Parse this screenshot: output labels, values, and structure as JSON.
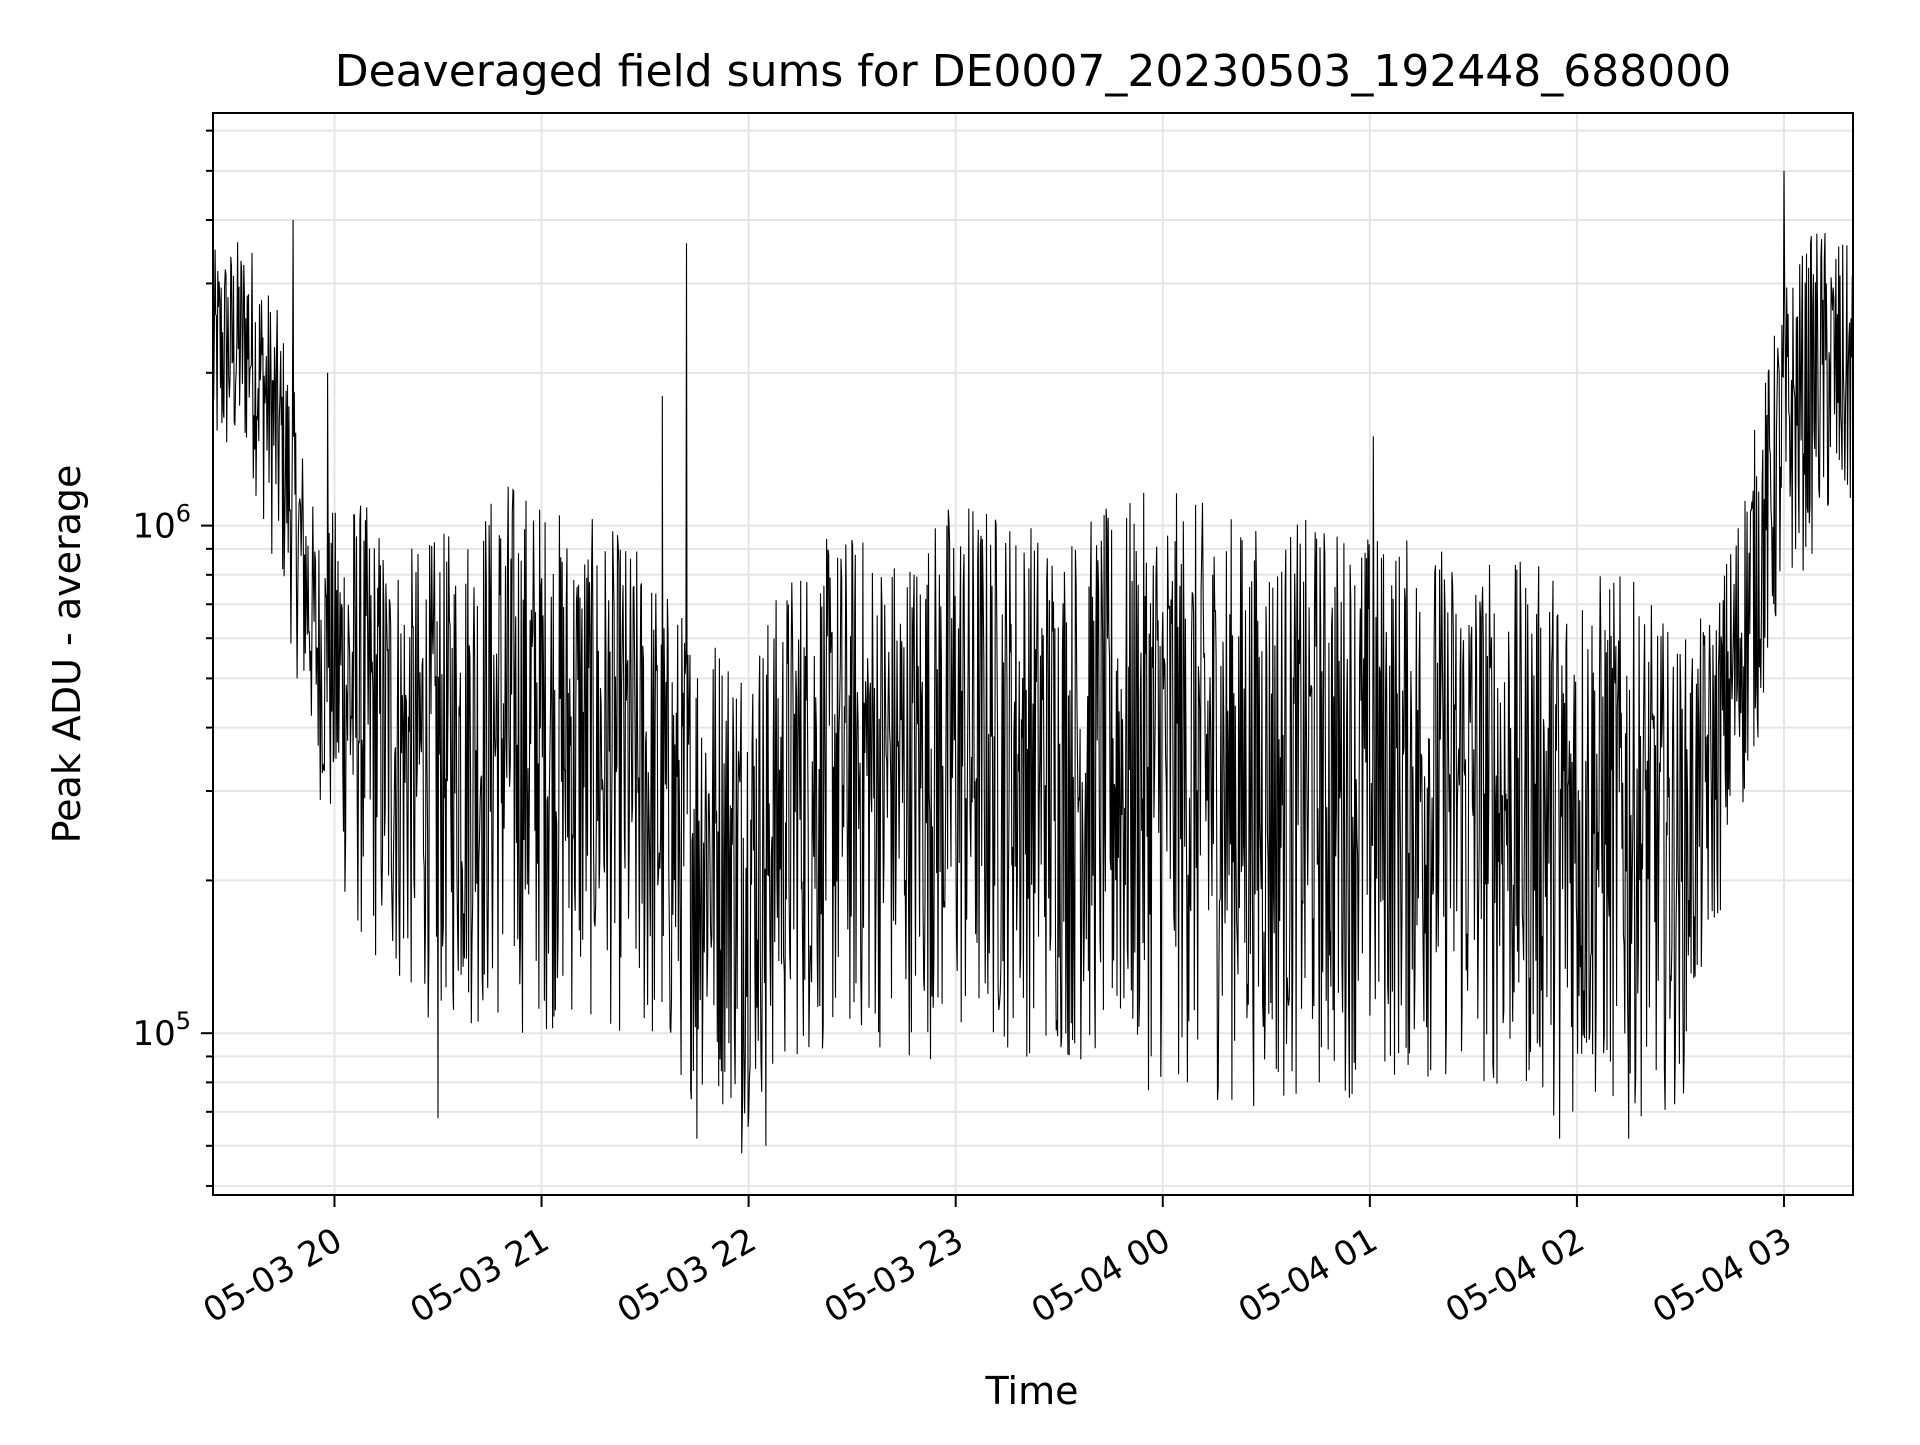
{
  "chart_data": {
    "type": "line",
    "title": "Deaveraged field sums for DE0007_20230503_192448_688000",
    "xlabel": "Time",
    "ylabel": "Peak ADU - average",
    "x_ticks": [
      "05-03 20",
      "05-03 21",
      "05-03 22",
      "05-03 23",
      "05-04 00",
      "05-04 01",
      "05-04 02",
      "05-04 03"
    ],
    "x_range": [
      "05-03 19:24:48",
      "05-04 03:20:00"
    ],
    "y_scale": "log",
    "ylim": [
      48000,
      6500000
    ],
    "y_ticks": [
      {
        "value": 100000,
        "base": "10",
        "exp": "5"
      },
      {
        "value": 1000000,
        "base": "10",
        "exp": "6"
      }
    ],
    "grid": true,
    "line_color": "#000000",
    "grid_color": "#e5e5e5",
    "series": [
      {
        "name": "",
        "x": [
          "05-03 19:25",
          "05-03 19:35",
          "05-03 19:45",
          "05-03 19:55",
          "05-03 20:05",
          "05-03 20:20",
          "05-03 20:35",
          "05-03 20:50",
          "05-03 21:05",
          "05-03 21:20",
          "05-03 21:30",
          "05-03 21:40",
          "05-03 21:50",
          "05-03 22:00",
          "05-03 22:15",
          "05-03 22:30",
          "05-03 22:45",
          "05-03 23:00",
          "05-03 23:15",
          "05-03 23:30",
          "05-03 23:45",
          "05-04 00:00",
          "05-04 00:15",
          "05-04 00:30",
          "05-04 00:45",
          "05-04 01:00",
          "05-04 01:15",
          "05-04 01:30",
          "05-04 01:45",
          "05-04 02:00",
          "05-04 02:15",
          "05-04 02:30",
          "05-04 02:40",
          "05-04 02:50",
          "05-04 03:00",
          "05-04 03:10",
          "05-04 03:20"
        ],
        "y_low": [
          1200000,
          1300000,
          700000,
          300000,
          150000,
          110000,
          100000,
          95000,
          100000,
          100000,
          85000,
          75000,
          70000,
          65000,
          85000,
          90000,
          90000,
          85000,
          90000,
          85000,
          80000,
          75000,
          72000,
          70000,
          72000,
          75000,
          78000,
          75000,
          72000,
          65000,
          68000,
          70000,
          150000,
          300000,
          700000,
          900000,
          1000000
        ],
        "y_high": [
          3500000,
          3800000,
          2500000,
          1000000,
          1200000,
          900000,
          1000000,
          1300000,
          1100000,
          1000000,
          900000,
          700000,
          650000,
          600000,
          900000,
          1000000,
          900000,
          1200000,
          1100000,
          1000000,
          1100000,
          1200000,
          1100000,
          1000000,
          1050000,
          1000000,
          950000,
          900000,
          850000,
          850000,
          800000,
          600000,
          700000,
          1400000,
          3000000,
          4000000,
          3500000
        ],
        "spikes": [
          {
            "x": "05-03 21:42",
            "y": 3600000
          },
          {
            "x": "05-03 21:35",
            "y": 1800000
          },
          {
            "x": "05-04 01:01",
            "y": 1500000
          },
          {
            "x": "05-04 03:00",
            "y": 5000000
          },
          {
            "x": "05-03 19:48",
            "y": 4000000
          },
          {
            "x": "05-03 19:58",
            "y": 2000000
          }
        ],
        "dips": [
          {
            "x": "05-03 22:05",
            "y": 60000
          },
          {
            "x": "05-03 21:58",
            "y": 58000
          },
          {
            "x": "05-04 01:55",
            "y": 62000
          },
          {
            "x": "05-04 02:15",
            "y": 62000
          },
          {
            "x": "05-03 20:30",
            "y": 68000
          },
          {
            "x": "05-03 21:45",
            "y": 62000
          }
        ]
      }
    ]
  }
}
